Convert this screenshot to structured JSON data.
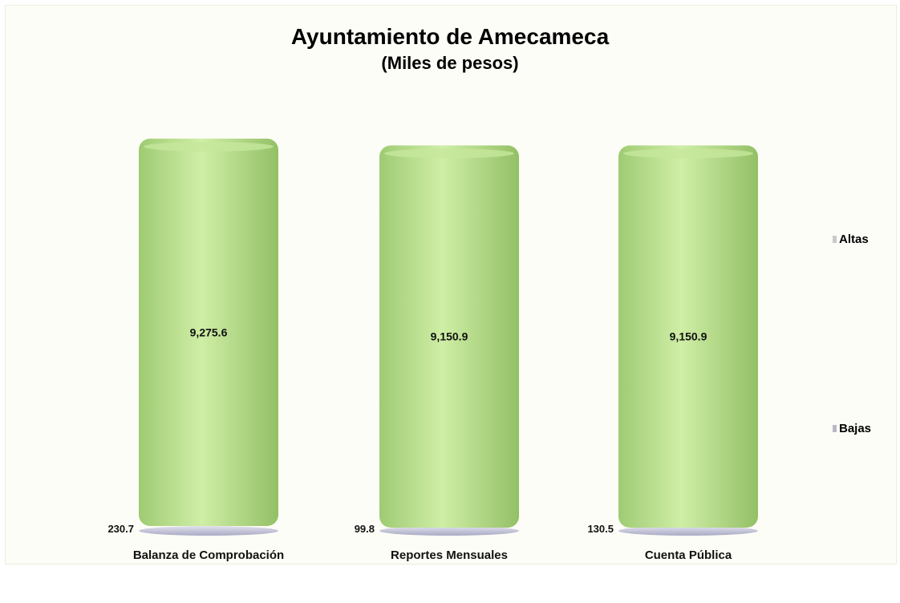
{
  "chart_data": {
    "type": "bar",
    "title": "Ayuntamiento de Amecameca",
    "subtitle": "(Miles de pesos)",
    "categories": [
      "Balanza de Comprobación",
      "Reportes Mensuales",
      "Cuenta Pública"
    ],
    "series": [
      {
        "name": "Altas",
        "values": [
          9275.6,
          9150.9,
          9150.9
        ],
        "labels": [
          "9,275.6",
          "9,150.9",
          "9,150.9"
        ],
        "color": "#b9dc8f"
      },
      {
        "name": "Bajas",
        "values": [
          230.7,
          99.8,
          130.5
        ],
        "labels": [
          "230.7",
          "99.8",
          "130.5"
        ],
        "color": "#c9c9df"
      }
    ],
    "stacked": true,
    "legend_position": "right",
    "grid": false
  }
}
